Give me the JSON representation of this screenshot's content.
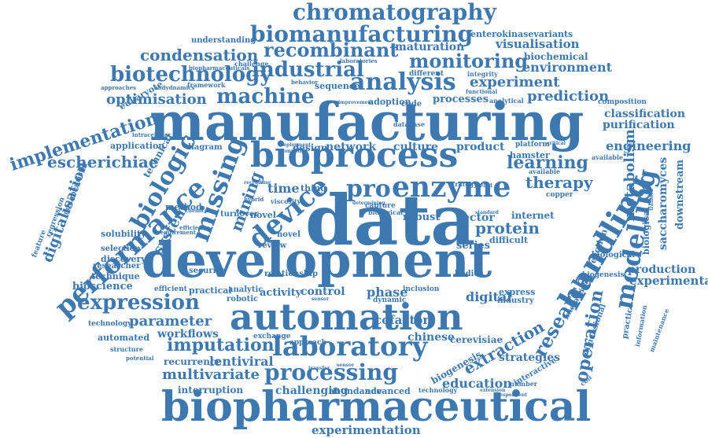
{
  "colors": {
    "word": "#3d78b0",
    "background": "#ffffff"
  },
  "words": [
    "chromatography",
    "biomanufacturing",
    "enterokinasevariants",
    "visualisation",
    "recombinant",
    "maturation",
    "condensation",
    "industrial",
    "monitoring",
    "biochemical",
    "environment",
    "biotechnology",
    "analysis",
    "experiment",
    "machine",
    "prediction",
    "optimisation",
    "processes",
    "composition",
    "manufacturing",
    "classification",
    "purification",
    "implementation",
    "bioprocess",
    "engineering",
    "escherichiae",
    "enzyme",
    "learning",
    "biologic",
    "therapy",
    "pro",
    "missing",
    "performance",
    "device",
    "data",
    "handling",
    "modelling",
    "metabolism",
    "saccharomyces",
    "downstream",
    "digitalisation",
    "protein",
    "vector",
    "system",
    "development",
    "production",
    "experimental",
    "expression",
    "automation",
    "phase",
    "digital",
    "research",
    "operation",
    "parameter",
    "imputation",
    "laboratory",
    "cofactor",
    "chinese",
    "cerevisiae",
    "extraction",
    "strategies",
    "workflows",
    "lentiviral",
    "multivariate",
    "processing",
    "education",
    "biopharmaceutical",
    "experimentation",
    "challenging",
    "abundance",
    "advanced",
    "interruption",
    "automated",
    "recurrence",
    "bioscience",
    "discovery",
    "technique",
    "solubility",
    "selection",
    "researcher",
    "security",
    "practical",
    "robotic",
    "analytic",
    "activity",
    "control",
    "culture",
    "product",
    "network",
    "design",
    "robust",
    "series",
    "difficult",
    "bodies",
    "industry",
    "express",
    "time",
    "thing",
    "review",
    "novel",
    "mining",
    "model",
    "technical",
    "diagram",
    "application",
    "method",
    "turnover",
    "eukaryote",
    "understanding",
    "challenge",
    "framework",
    "integrity",
    "different",
    "behavior",
    "sequence",
    "adoption",
    "code",
    "internet",
    "hamster",
    "available",
    "platform",
    "reaction",
    "biological",
    "practice",
    "dimensional",
    "interactive",
    "biogenesis",
    "technology",
    "inclusion",
    "dynamic",
    "approach",
    "exchange",
    "relationship",
    "copper",
    "recovery",
    "sulphur",
    "solution",
    "efficient",
    "predict",
    "potential",
    "structure",
    "approaches",
    "andydnamics",
    "biopharmaceuticals",
    "laboratories",
    "intracellular",
    "functional",
    "analytical",
    "database",
    "capture",
    "strategy",
    "yeast",
    "critical",
    "feature",
    "regression",
    "metaheuristic",
    "requirement",
    "chemical",
    "efficiency",
    "biomodal",
    "recruiting",
    "viscosity",
    "hybrid",
    "sensor",
    "transfer",
    "information",
    "maintenance",
    "intelligence",
    "consideration",
    "improvement",
    "deployment",
    "compound",
    "biological",
    "determining",
    "availability",
    "dependent",
    "bioprocessing",
    "standard",
    "respondent",
    "extension",
    "number",
    "coli",
    "step",
    "level",
    "viral",
    "state",
    "pipeline",
    "dataset",
    "increase",
    "quality"
  ]
}
